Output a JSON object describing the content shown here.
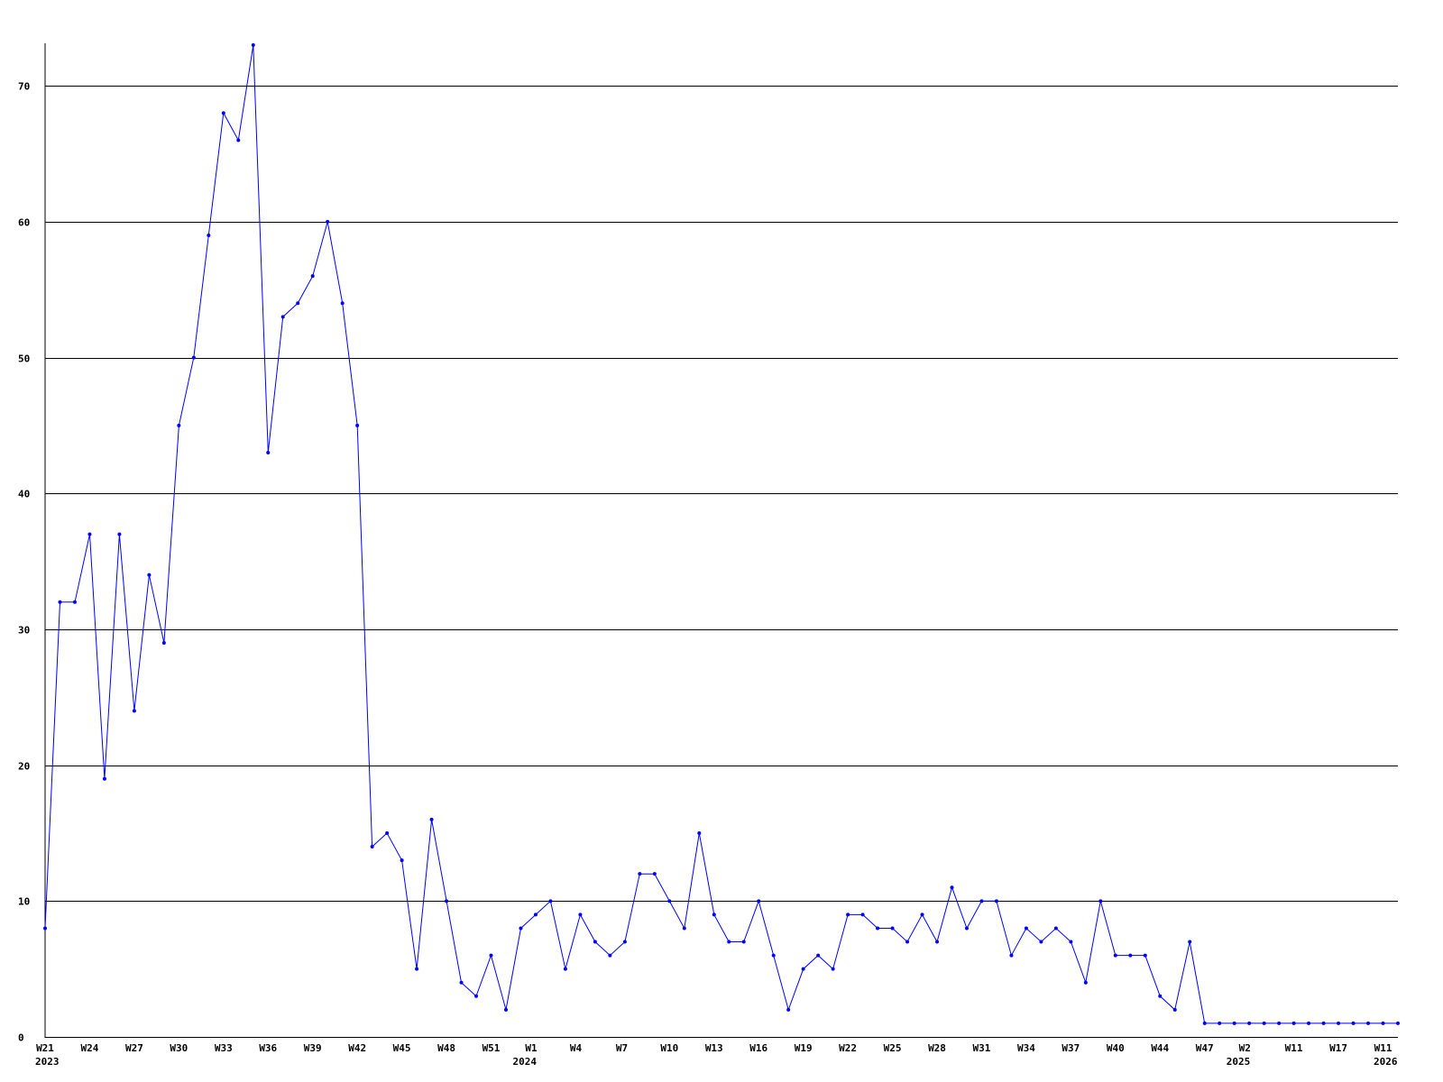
{
  "chart_data": {
    "type": "line",
    "title": "",
    "xlabel": "",
    "ylabel": "",
    "ylim": [
      0,
      73
    ],
    "yticks": [
      0,
      10,
      20,
      30,
      40,
      50,
      60,
      70
    ],
    "grid": true,
    "line_color": "#0000ff",
    "values": [
      8,
      32,
      32,
      37,
      19,
      37,
      24,
      34,
      29,
      45,
      50,
      59,
      68,
      66,
      73,
      43,
      53,
      54,
      56,
      60,
      54,
      45,
      14,
      15,
      13,
      5,
      16,
      10,
      4,
      3,
      6,
      2,
      8,
      9,
      10,
      5,
      9,
      7,
      6,
      7,
      12,
      12,
      10,
      8,
      15,
      9,
      7,
      7,
      10,
      6,
      2,
      5,
      6,
      5,
      9,
      9,
      8,
      8,
      7,
      9,
      7,
      11,
      8,
      10,
      10,
      6,
      8,
      7,
      8,
      7,
      4,
      10,
      6,
      6,
      6,
      3,
      2,
      7,
      1,
      1,
      1,
      1,
      1,
      1,
      1,
      1,
      1,
      1,
      1,
      1,
      1,
      1
    ],
    "xticks": [
      {
        "label": "W21",
        "year": "2023",
        "at": 0
      },
      {
        "label": "W24",
        "at": 3
      },
      {
        "label": "W27",
        "at": 6
      },
      {
        "label": "W30",
        "at": 9
      },
      {
        "label": "W33",
        "at": 12
      },
      {
        "label": "W36",
        "at": 15
      },
      {
        "label": "W39",
        "at": 18
      },
      {
        "label": "W42",
        "at": 21
      },
      {
        "label": "W45",
        "at": 24
      },
      {
        "label": "W48",
        "at": 27
      },
      {
        "label": "W51",
        "at": 30
      },
      {
        "label": "W1",
        "year": "2024",
        "at": 32.7
      },
      {
        "label": "W4",
        "at": 35.7
      },
      {
        "label": "W7",
        "at": 38.8
      },
      {
        "label": "W10",
        "at": 42
      },
      {
        "label": "W13",
        "at": 45
      },
      {
        "label": "W16",
        "at": 48
      },
      {
        "label": "W19",
        "at": 51
      },
      {
        "label": "W22",
        "at": 54
      },
      {
        "label": "W25",
        "at": 57
      },
      {
        "label": "W28",
        "at": 60
      },
      {
        "label": "W31",
        "at": 63
      },
      {
        "label": "W34",
        "at": 66
      },
      {
        "label": "W37",
        "at": 69
      },
      {
        "label": "W40",
        "at": 72
      },
      {
        "label": "W44",
        "at": 75
      },
      {
        "label": "W47",
        "at": 78
      },
      {
        "label": "W2",
        "year": "2025",
        "at": 80.7
      },
      {
        "label": "W11",
        "at": 84
      },
      {
        "label": "W17",
        "at": 87
      },
      {
        "label": "W11",
        "year": "2026",
        "at": 90
      }
    ]
  }
}
